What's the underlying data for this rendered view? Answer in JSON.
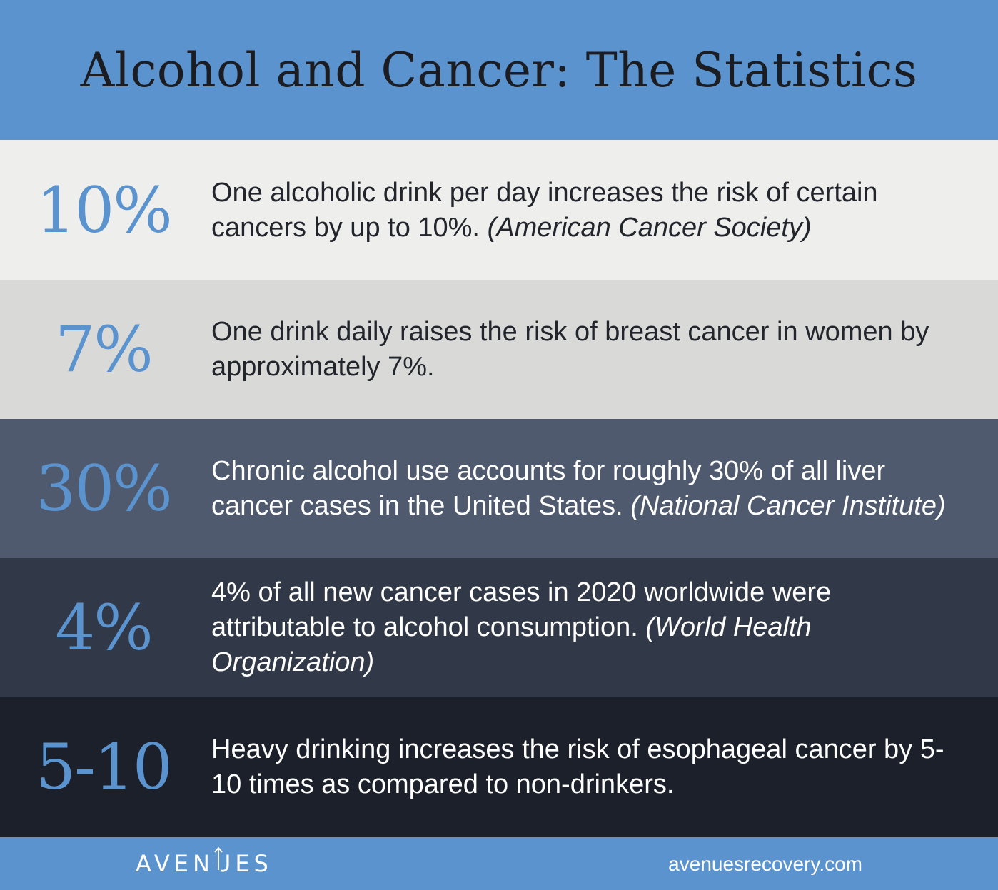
{
  "header": {
    "title": "Alcohol and Cancer: The Statistics"
  },
  "stats": [
    {
      "value": "10%",
      "text": "One alcoholic drink per day increases the risk of certain cancers by up to 10%.",
      "source": "(American Cancer Society)"
    },
    {
      "value": "7%",
      "text": "One drink daily raises the risk of breast cancer in women by approximately 7%.",
      "source": ""
    },
    {
      "value": "30%",
      "text": "Chronic alcohol use accounts for roughly 30% of all liver cancer cases in the United States.",
      "source": "(National Cancer Institute)"
    },
    {
      "value": "4%",
      "text": "4% of all new cancer cases in 2020 worldwide were attributable to alcohol consumption.",
      "source": "(World Health Organization)"
    },
    {
      "value": "5-10",
      "text": "Heavy drinking increases the risk of esophageal cancer by 5-10 times as compared to non-drinkers.",
      "source": ""
    }
  ],
  "footer": {
    "logo_text": "AVENUES",
    "website": "avenuesrecovery.com"
  },
  "colors": {
    "brand_blue": "#5B93CE",
    "row1_bg": "#EEEEEC",
    "row2_bg": "#D9DAD8",
    "row3_bg": "#4F5A6E",
    "row4_bg": "#313948",
    "row5_bg": "#1C202A"
  }
}
